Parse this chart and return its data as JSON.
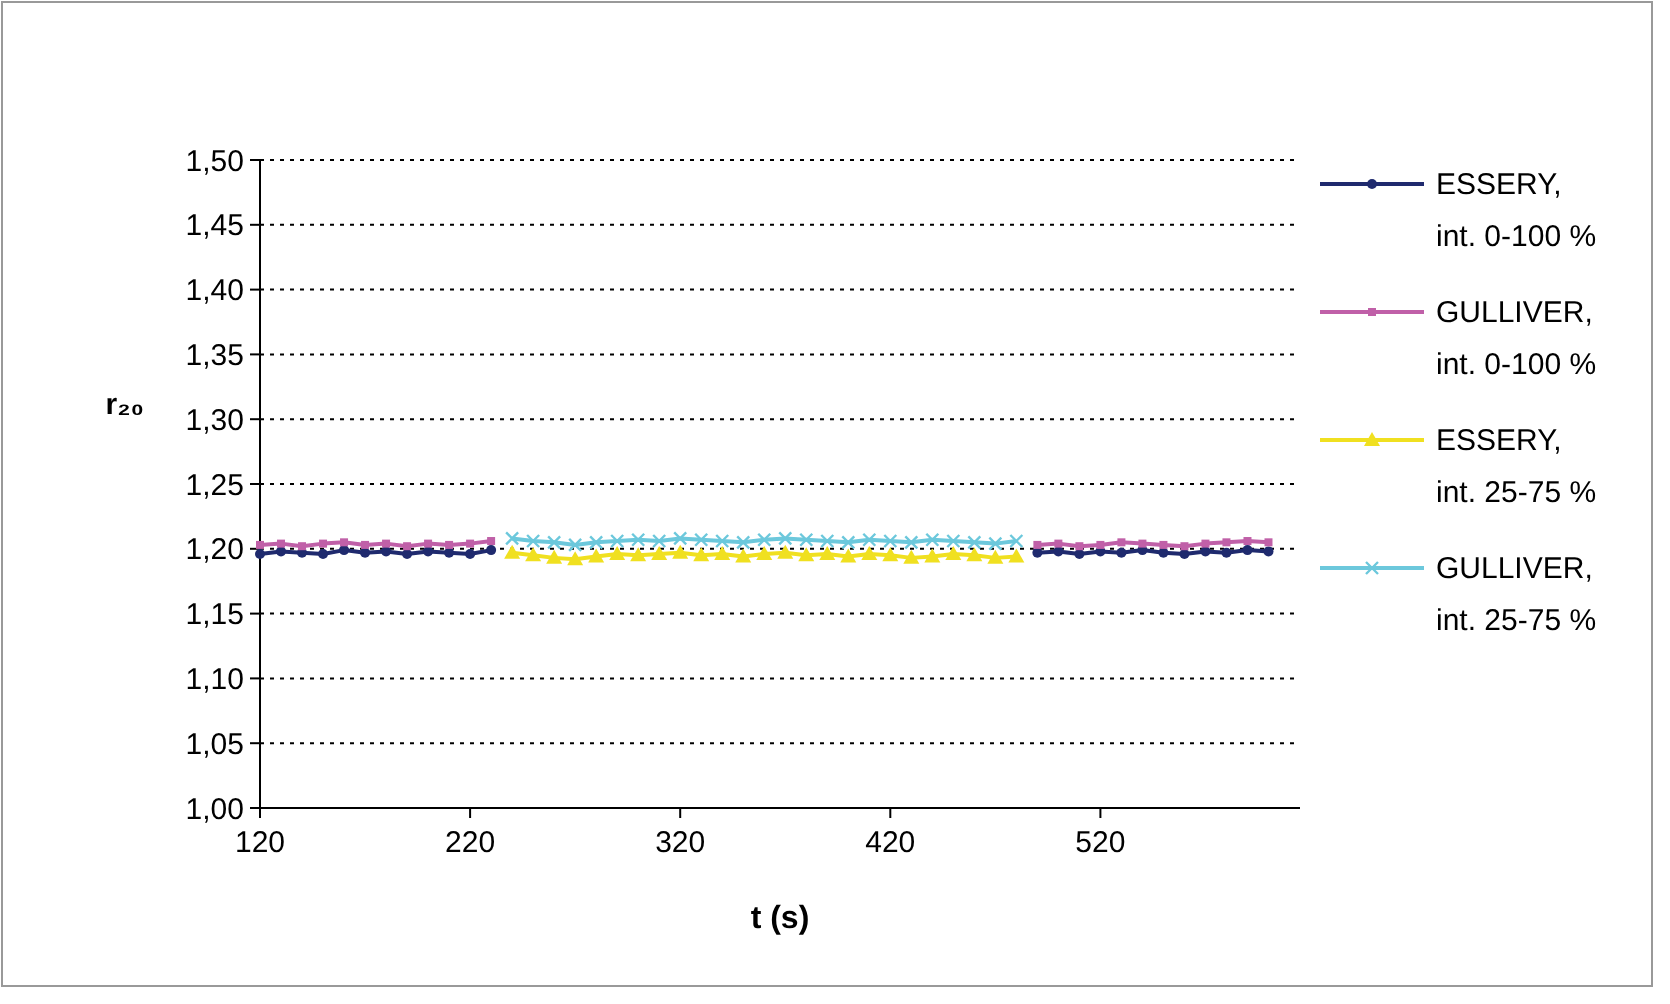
{
  "chart_data": {
    "type": "line",
    "xlabel": "t (s)",
    "ylabel": "r₂₀",
    "x": [
      120,
      130,
      140,
      150,
      160,
      170,
      180,
      190,
      200,
      210,
      220,
      230,
      240,
      250,
      260,
      270,
      280,
      290,
      300,
      310,
      320,
      330,
      340,
      350,
      360,
      370,
      380,
      390,
      400,
      410,
      420,
      430,
      440,
      450,
      460,
      470,
      480,
      490,
      500,
      510,
      520,
      530,
      540,
      550,
      560,
      570,
      580,
      590,
      600
    ],
    "series": [
      {
        "name": "ESSERY,\nint. 0-100 %",
        "color": "#1f2a6e",
        "marker": "circle",
        "values": [
          1.196,
          1.198,
          1.197,
          1.196,
          1.199,
          1.197,
          1.198,
          1.196,
          1.198,
          1.197,
          1.196,
          1.199,
          null,
          null,
          null,
          null,
          null,
          null,
          null,
          null,
          null,
          null,
          null,
          null,
          null,
          null,
          null,
          null,
          null,
          null,
          null,
          null,
          null,
          null,
          null,
          null,
          null,
          1.197,
          1.198,
          1.196,
          1.198,
          1.197,
          1.199,
          1.197,
          1.196,
          1.198,
          1.197,
          1.199,
          1.198
        ]
      },
      {
        "name": "GULLIVER,\nint. 0-100 %",
        "color": "#c060a8",
        "marker": "square",
        "values": [
          1.203,
          1.204,
          1.202,
          1.204,
          1.205,
          1.203,
          1.204,
          1.202,
          1.204,
          1.203,
          1.204,
          1.206,
          null,
          null,
          null,
          null,
          null,
          null,
          null,
          null,
          null,
          null,
          null,
          null,
          null,
          null,
          null,
          null,
          null,
          null,
          null,
          null,
          null,
          null,
          null,
          null,
          null,
          1.203,
          1.204,
          1.202,
          1.203,
          1.205,
          1.204,
          1.203,
          1.202,
          1.204,
          1.205,
          1.206,
          1.205
        ]
      },
      {
        "name": "ESSERY,\nint. 25-75 %",
        "color": "#f0e020",
        "marker": "triangle",
        "values": [
          null,
          null,
          null,
          null,
          null,
          null,
          null,
          null,
          null,
          null,
          null,
          null,
          1.197,
          1.195,
          1.193,
          1.192,
          1.194,
          1.196,
          1.195,
          1.196,
          1.197,
          1.195,
          1.196,
          1.194,
          1.196,
          1.197,
          1.195,
          1.196,
          1.194,
          1.196,
          1.195,
          1.193,
          1.194,
          1.196,
          1.195,
          1.193,
          1.194,
          null,
          null,
          null,
          null,
          null,
          null,
          null,
          null,
          null,
          null,
          null,
          null
        ]
      },
      {
        "name": "GULLIVER,\nint. 25-75 %",
        "color": "#6cc8dc",
        "marker": "cross",
        "values": [
          null,
          null,
          null,
          null,
          null,
          null,
          null,
          null,
          null,
          null,
          null,
          null,
          1.208,
          1.206,
          1.205,
          1.203,
          1.205,
          1.206,
          1.207,
          1.206,
          1.208,
          1.207,
          1.206,
          1.205,
          1.207,
          1.208,
          1.207,
          1.206,
          1.205,
          1.207,
          1.206,
          1.205,
          1.207,
          1.206,
          1.205,
          1.204,
          1.206,
          null,
          null,
          null,
          null,
          null,
          null,
          null,
          null,
          null,
          null,
          null,
          null
        ]
      }
    ],
    "xlim": [
      120,
      615
    ],
    "xticks": [
      120,
      220,
      320,
      420,
      520
    ],
    "ylim": [
      1.0,
      1.5
    ],
    "yticks": [
      {
        "value": 1.0,
        "label": "1,00"
      },
      {
        "value": 1.05,
        "label": "1,05"
      },
      {
        "value": 1.1,
        "label": "1,10"
      },
      {
        "value": 1.15,
        "label": "1,15"
      },
      {
        "value": 1.2,
        "label": "1,20"
      },
      {
        "value": 1.25,
        "label": "1,25"
      },
      {
        "value": 1.3,
        "label": "1,30"
      },
      {
        "value": 1.35,
        "label": "1,35"
      },
      {
        "value": 1.4,
        "label": "1,40"
      },
      {
        "value": 1.45,
        "label": "1,45"
      },
      {
        "value": 1.5,
        "label": "1,50"
      }
    ],
    "grid": "y",
    "legend": "right",
    "line_style": "solid"
  }
}
